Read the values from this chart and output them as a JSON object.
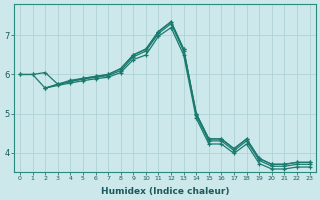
{
  "xlabel": "Humidex (Indice chaleur)",
  "bg_color": "#cce8eb",
  "grid_color": "#aacfd4",
  "line_color": "#1a7a6e",
  "xlim": [
    -0.5,
    23.5
  ],
  "ylim": [
    3.5,
    7.8
  ],
  "xticks": [
    0,
    1,
    2,
    3,
    4,
    5,
    6,
    7,
    8,
    9,
    10,
    11,
    12,
    13,
    14,
    15,
    16,
    17,
    18,
    19,
    20,
    21,
    22,
    23
  ],
  "yticks": [
    4,
    5,
    6,
    7
  ],
  "line1_x": [
    0,
    1,
    2,
    3,
    4,
    5,
    6,
    7,
    8,
    9,
    10,
    11,
    12,
    13,
    14,
    15,
    16,
    17,
    18,
    19,
    20,
    21,
    22,
    23
  ],
  "line1_y": [
    6.0,
    6.0,
    6.05,
    5.75,
    5.85,
    5.9,
    5.95,
    6.0,
    6.15,
    6.5,
    6.65,
    7.1,
    7.35,
    6.65,
    5.0,
    4.35,
    4.35,
    4.1,
    4.35,
    3.85,
    3.7,
    3.7,
    3.75,
    3.75
  ],
  "line2_x": [
    0,
    1,
    2,
    3,
    4,
    5,
    6,
    7,
    8,
    9,
    10,
    11,
    12,
    13,
    14,
    15,
    16,
    17,
    18,
    19,
    20,
    21,
    22,
    23
  ],
  "line2_y": [
    6.0,
    6.0,
    5.65,
    5.75,
    5.82,
    5.9,
    5.95,
    6.0,
    6.15,
    6.5,
    6.65,
    7.1,
    7.35,
    6.65,
    5.0,
    4.35,
    4.35,
    4.1,
    4.35,
    3.85,
    3.7,
    3.7,
    3.75,
    3.75
  ],
  "line3_x": [
    2,
    3,
    4,
    5,
    6,
    7,
    8,
    9,
    10,
    11,
    12,
    13,
    14,
    15,
    16,
    17,
    18,
    19,
    20,
    21,
    22,
    23
  ],
  "line3_y": [
    5.65,
    5.75,
    5.82,
    5.88,
    5.93,
    5.97,
    6.1,
    6.45,
    6.6,
    7.05,
    7.3,
    6.6,
    4.95,
    4.3,
    4.3,
    4.05,
    4.3,
    3.8,
    3.65,
    3.65,
    3.7,
    3.7
  ],
  "line4_x": [
    2,
    3,
    4,
    5,
    6,
    7,
    8,
    9,
    10,
    11,
    12,
    13,
    14,
    15,
    16,
    17,
    18,
    19,
    20,
    21,
    22,
    23
  ],
  "line4_y": [
    5.65,
    5.72,
    5.78,
    5.84,
    5.89,
    5.93,
    6.05,
    6.38,
    6.5,
    6.98,
    7.2,
    6.5,
    4.88,
    4.22,
    4.22,
    3.98,
    4.22,
    3.72,
    3.58,
    3.58,
    3.63,
    3.63
  ]
}
